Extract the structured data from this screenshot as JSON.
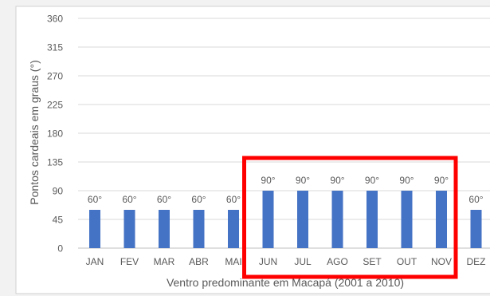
{
  "chart_data": {
    "type": "bar",
    "categories": [
      "JAN",
      "FEV",
      "MAR",
      "ABR",
      "MAI",
      "JUN",
      "JUL",
      "AGO",
      "SET",
      "OUT",
      "NOV",
      "DEZ"
    ],
    "series": [
      {
        "values": [
          60,
          60,
          60,
          60,
          60,
          90,
          90,
          90,
          90,
          90,
          90,
          60
        ]
      }
    ],
    "data_labels": [
      "60°",
      "60°",
      "60°",
      "60°",
      "60°",
      "90°",
      "90°",
      "90°",
      "90°",
      "90°",
      "90°",
      "60°"
    ],
    "ylim": [
      0,
      360
    ],
    "yticks": [
      0,
      45,
      90,
      135,
      180,
      225,
      270,
      315,
      360
    ],
    "xlabel": "Ventro predominante em Macapá (2001 a 2010)",
    "ylabel": "Pontos cardeais em graus (°)",
    "grid": true,
    "bar_color": "#4472c4",
    "highlight": {
      "from": "JUN",
      "to": "NOV",
      "color": "#ff0000"
    }
  }
}
